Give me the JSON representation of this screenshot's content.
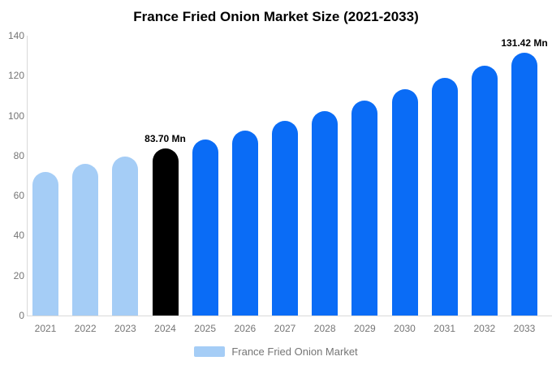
{
  "header": {
    "title": "France Fried Onion Market Size (2021-2033)"
  },
  "legend": {
    "label": "France Fried Onion Market"
  },
  "colors": {
    "past_bar": "#a5cdf6",
    "current_bar": "#000000",
    "forecast_bar": "#0a6cf6",
    "axis_line": "#d9d9d9",
    "axis_text": "#757575",
    "annotation_text": "#000000"
  },
  "chart_data": {
    "type": "bar",
    "title": "France Fried Onion Market Size (2021-2033)",
    "categories": [
      "2021",
      "2022",
      "2023",
      "2024",
      "2025",
      "2026",
      "2027",
      "2028",
      "2029",
      "2030",
      "2031",
      "2032",
      "2033"
    ],
    "values": [
      72.01,
      75.72,
      79.61,
      83.7,
      88.0,
      92.53,
      97.28,
      102.29,
      107.54,
      113.07,
      118.89,
      125.0,
      131.42
    ],
    "unit": "Mn",
    "xlabel": "",
    "ylabel": "",
    "ylim": [
      0,
      140
    ],
    "yticks": [
      0,
      20,
      40,
      60,
      80,
      100,
      120,
      140
    ],
    "grid": false,
    "legend_position": "bottom",
    "legend_entries": [
      "France Fried Onion Market"
    ],
    "bar_color_keys": [
      "past",
      "past",
      "past",
      "current",
      "forecast",
      "forecast",
      "forecast",
      "forecast",
      "forecast",
      "forecast",
      "forecast",
      "forecast",
      "forecast"
    ],
    "annotations": [
      {
        "index": 3,
        "text": "83.70 Mn"
      },
      {
        "index": 12,
        "text": "131.42 Mn"
      }
    ]
  }
}
